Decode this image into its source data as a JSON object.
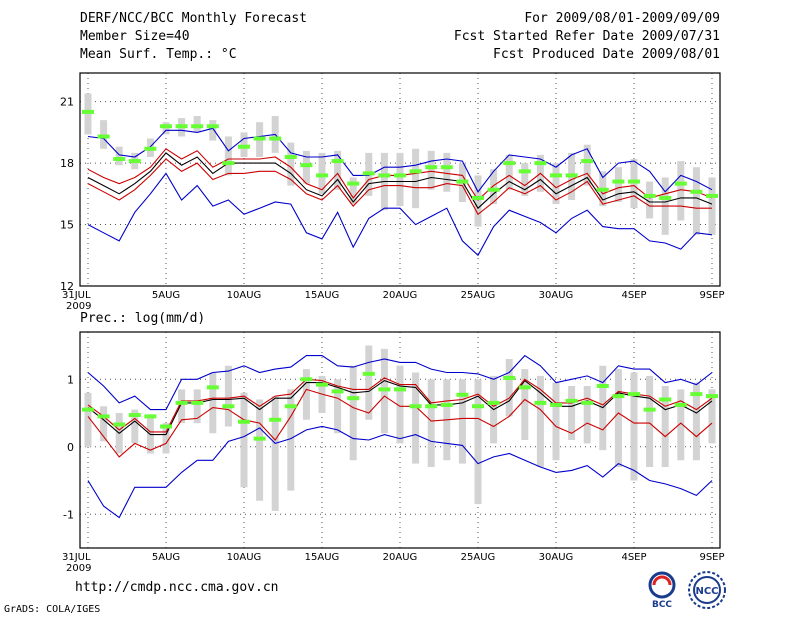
{
  "header": {
    "title": "DERF/NCC/BCC Monthly Forecast",
    "member_size": "Member Size=40",
    "variable": "Mean Surf. Temp.: °C",
    "period": "For 2009/08/01-2009/09/09",
    "started": "Fcst Started Refer Date 2009/07/31",
    "produced": "Fcst Produced Date 2009/08/01"
  },
  "footer": {
    "url": "http://cmdp.ncc.cma.gov.cn",
    "credit": "GrADS: COLA/IGES",
    "logo_bcc": "BCC",
    "logo_ncc": "NCC"
  },
  "colors": {
    "upper": "#0000cc",
    "lower": "#0000cc",
    "p75": "#cc0000",
    "p25": "#cc0000",
    "mean": "#000000",
    "box": "#d3d3d3",
    "obs": "#66ff33",
    "grid": "#555555"
  },
  "chart_data": [
    {
      "type": "line",
      "title": "Mean Surf. Temp.: °C",
      "x_count": 41,
      "xtick_labels": [
        "31JUL\n2009",
        "5AUG",
        "10AUG",
        "15AUG",
        "20AUG",
        "25AUG",
        "30AUG",
        "4SEP",
        "9SEP"
      ],
      "xtick_index": [
        0,
        5,
        10,
        15,
        20,
        25,
        30,
        35,
        40
      ],
      "ylim": [
        12,
        22.4
      ],
      "yticks": [
        12,
        15,
        18,
        21
      ],
      "series": [
        {
          "name": "max",
          "color_key": "upper",
          "values": [
            15,
            14.6,
            14.2,
            15.6,
            16.5,
            17.5,
            16.2,
            16.9,
            15.9,
            16.2,
            15.5,
            15.8,
            16.1,
            16,
            14.6,
            14.3,
            15.6,
            13.9,
            15.3,
            15.8,
            15.8,
            15,
            15.4,
            15.8,
            14.2,
            13.5,
            14.9,
            15.7,
            15.4,
            15.1,
            14.6,
            15.3,
            15.7,
            14.9,
            14.8,
            14.8,
            14.2,
            14.1,
            13.8,
            14.6,
            14.5
          ]
        },
        {
          "name": "p25",
          "color_key": "p25",
          "values": [
            17,
            16.6,
            16.2,
            16.7,
            17.4,
            18.2,
            17.6,
            18,
            17.2,
            17.5,
            17.5,
            17.6,
            17.6,
            17.2,
            16.5,
            16.2,
            16.9,
            15.9,
            16.7,
            16.9,
            16.9,
            16.8,
            16.8,
            17,
            16.9,
            15.5,
            16.1,
            16.8,
            16.5,
            16.9,
            16.2,
            16.6,
            17.1,
            16,
            16.2,
            16.4,
            15.9,
            15.9,
            15.9,
            15.8,
            15.8
          ]
        },
        {
          "name": "mean",
          "color_key": "mean",
          "values": [
            17.3,
            16.9,
            16.5,
            17,
            17.6,
            18.5,
            17.9,
            18.3,
            17.5,
            18,
            18,
            18,
            18,
            17.5,
            16.7,
            16.4,
            17.2,
            16.1,
            17,
            17.1,
            17.1,
            17.1,
            17.3,
            17.2,
            17.1,
            15.8,
            16.5,
            17.1,
            16.7,
            17.2,
            16.5,
            16.9,
            17.3,
            16.2,
            16.5,
            16.6,
            16.1,
            16.1,
            16.3,
            16.3,
            16
          ]
        },
        {
          "name": "p75",
          "color_key": "p75",
          "values": [
            17.7,
            17.3,
            17,
            17.3,
            17.8,
            18.7,
            18.2,
            18.6,
            17.8,
            18.2,
            18.2,
            18.2,
            18.3,
            17.8,
            17,
            16.7,
            17.5,
            16.3,
            17.2,
            17.4,
            17.4,
            17.5,
            17.6,
            17.5,
            17.4,
            16.2,
            16.9,
            17.4,
            16.9,
            17.5,
            16.8,
            17.2,
            17.5,
            16.5,
            16.8,
            16.9,
            16.3,
            16.5,
            16.7,
            16.6,
            16.3
          ]
        },
        {
          "name": "min",
          "color_key": "lower",
          "values": [
            19.3,
            19.2,
            18.4,
            18.3,
            18.8,
            19.6,
            19.6,
            19.5,
            19.7,
            18.6,
            19.2,
            19.3,
            19.4,
            18.5,
            18.3,
            18.3,
            18.4,
            17.4,
            17.4,
            17.8,
            17.8,
            17.9,
            18.1,
            18.2,
            18.1,
            16.6,
            17.6,
            18.4,
            18.3,
            18.2,
            17.8,
            18.4,
            18.7,
            17.3,
            18,
            18.1,
            17.6,
            16.6,
            17.4,
            17.1,
            16.7
          ]
        }
      ],
      "boxes": [
        [
          19.4,
          21.4
        ],
        [
          18.7,
          20.1
        ],
        [
          17.9,
          18.8
        ],
        [
          17.7,
          18.5
        ],
        [
          18.3,
          19.2
        ],
        [
          19.4,
          20
        ],
        [
          19.3,
          20.2
        ],
        [
          19.5,
          20.3
        ],
        [
          19.1,
          20.1
        ],
        [
          17.4,
          19.3
        ],
        [
          18.3,
          19.5
        ],
        [
          18.3,
          20
        ],
        [
          18.5,
          20.3
        ],
        [
          16.9,
          19
        ],
        [
          17,
          18.6
        ],
        [
          16.5,
          18.5
        ],
        [
          16.7,
          18.6
        ],
        [
          16,
          17.3
        ],
        [
          16.4,
          18.5
        ],
        [
          15.7,
          18.5
        ],
        [
          15.9,
          18.5
        ],
        [
          15.8,
          18.7
        ],
        [
          16.7,
          18.6
        ],
        [
          16.6,
          18.5
        ],
        [
          16.1,
          18
        ],
        [
          14.9,
          17.4
        ],
        [
          16,
          17.7
        ],
        [
          16.7,
          18.4
        ],
        [
          16.4,
          18
        ],
        [
          16.6,
          18.4
        ],
        [
          16,
          18
        ],
        [
          16.2,
          18.5
        ],
        [
          16.9,
          18.9
        ],
        [
          15.9,
          17.6
        ],
        [
          16.1,
          17.8
        ],
        [
          15.8,
          18.2
        ],
        [
          15.3,
          17.1
        ],
        [
          14.5,
          17.3
        ],
        [
          15.2,
          18.1
        ],
        [
          14.5,
          17.8
        ],
        [
          14.5,
          17.3
        ]
      ],
      "obs": [
        20.5,
        19.3,
        18.2,
        18.1,
        18.7,
        19.8,
        19.8,
        19.8,
        19.8,
        18,
        18.8,
        19.2,
        19.2,
        18.3,
        17.9,
        17.4,
        18.1,
        17,
        17.5,
        17.4,
        17.4,
        17.6,
        17.8,
        17.8,
        17.1,
        16.3,
        16.7,
        18,
        17.6,
        18,
        17.4,
        17.4,
        18.1,
        16.7,
        17.1,
        17.1,
        16.4,
        16.3,
        17,
        16.6,
        16.4
      ]
    },
    {
      "type": "line",
      "title": "Prec.: log(mm/d)",
      "x_count": 41,
      "xtick_labels": [
        "31JUL\n2009",
        "5AUG",
        "10AUG",
        "15AUG",
        "20AUG",
        "25AUG",
        "30AUG",
        "4SEP",
        "9SEP"
      ],
      "xtick_index": [
        0,
        5,
        10,
        15,
        20,
        25,
        30,
        35,
        40
      ],
      "ylim": [
        -1.5,
        1.7
      ],
      "yticks": [
        -1,
        0,
        1
      ],
      "series": [
        {
          "name": "min",
          "color_key": "lower",
          "values": [
            -0.5,
            -0.88,
            -1.05,
            -0.6,
            -0.6,
            -0.6,
            -0.38,
            -0.2,
            -0.2,
            0.08,
            0.15,
            0.28,
            0.05,
            0.12,
            0.25,
            0.3,
            0.25,
            0.12,
            0.1,
            0.18,
            0.12,
            0.18,
            0.08,
            0.05,
            0.02,
            -0.25,
            -0.15,
            -0.1,
            -0.2,
            -0.3,
            -0.38,
            -0.35,
            -0.28,
            -0.45,
            -0.25,
            -0.35,
            -0.5,
            -0.55,
            -0.62,
            -0.72,
            -0.5
          ]
        },
        {
          "name": "p25",
          "color_key": "p25",
          "values": [
            0.45,
            0.15,
            -0.15,
            0.05,
            -0.05,
            0.05,
            0.4,
            0.42,
            0.58,
            0.55,
            0.4,
            0.35,
            0.1,
            0.45,
            0.85,
            0.78,
            0.72,
            0.58,
            0.5,
            0.75,
            0.6,
            0.6,
            0.38,
            0.4,
            0.42,
            0.42,
            0.3,
            0.45,
            0.7,
            0.55,
            0.3,
            0.2,
            0.35,
            0.25,
            0.5,
            0.35,
            0.35,
            0.15,
            0.35,
            0.15,
            0.35
          ]
        },
        {
          "name": "mean",
          "color_key": "mean",
          "values": [
            0.58,
            0.4,
            0.2,
            0.38,
            0.18,
            0.18,
            0.65,
            0.65,
            0.7,
            0.7,
            0.72,
            0.55,
            0.72,
            0.72,
            0.95,
            0.95,
            0.88,
            0.8,
            0.82,
            0.98,
            0.9,
            0.88,
            0.62,
            0.62,
            0.65,
            0.75,
            0.55,
            0.68,
            0.98,
            0.8,
            0.6,
            0.6,
            0.68,
            0.58,
            0.8,
            0.75,
            0.72,
            0.55,
            0.62,
            0.5,
            0.68
          ]
        },
        {
          "name": "p75",
          "color_key": "p75",
          "values": [
            0.62,
            0.45,
            0.25,
            0.42,
            0.22,
            0.22,
            0.68,
            0.68,
            0.72,
            0.72,
            0.75,
            0.6,
            0.75,
            0.78,
            1,
            0.98,
            0.9,
            0.85,
            0.85,
            1.02,
            0.92,
            0.92,
            0.65,
            0.68,
            0.7,
            0.78,
            0.6,
            0.72,
            1,
            0.85,
            0.65,
            0.65,
            0.72,
            0.62,
            0.82,
            0.78,
            0.75,
            0.6,
            0.68,
            0.55,
            0.72
          ]
        },
        {
          "name": "max",
          "color_key": "upper",
          "values": [
            1.1,
            0.9,
            0.65,
            0.75,
            0.55,
            0.55,
            1,
            1,
            1.1,
            1.12,
            1.2,
            1.1,
            1.15,
            1.18,
            1.35,
            1.35,
            1.2,
            1.18,
            1.25,
            1.3,
            1.25,
            1.25,
            1.15,
            1.1,
            1.1,
            1.08,
            1,
            1.1,
            1.35,
            1.2,
            0.95,
            1,
            1.05,
            0.95,
            1.2,
            1.15,
            1.15,
            0.95,
            1,
            0.92,
            1.1
          ]
        }
      ],
      "boxes": [
        [
          0,
          0.8
        ],
        [
          0.08,
          0.6
        ],
        [
          -0.1,
          0.5
        ],
        [
          0.05,
          0.55
        ],
        [
          -0.1,
          0.45
        ],
        [
          -0.1,
          0.35
        ],
        [
          0.35,
          0.85
        ],
        [
          0.35,
          0.85
        ],
        [
          0.2,
          1.1
        ],
        [
          0.3,
          1.2
        ],
        [
          -0.6,
          0.8
        ],
        [
          -0.8,
          0.7
        ],
        [
          -0.95,
          0.75
        ],
        [
          -0.65,
          0.85
        ],
        [
          0.4,
          1.15
        ],
        [
          0.5,
          1.05
        ],
        [
          0.2,
          1
        ],
        [
          -0.2,
          1.2
        ],
        [
          0.4,
          1.5
        ],
        [
          0.2,
          1.45
        ],
        [
          0.05,
          1.2
        ],
        [
          -0.25,
          1.1
        ],
        [
          -0.3,
          1
        ],
        [
          -0.2,
          1
        ],
        [
          -0.25,
          1
        ],
        [
          -0.85,
          1
        ],
        [
          0.05,
          1.05
        ],
        [
          0.45,
          1.3
        ],
        [
          0.1,
          1.15
        ],
        [
          -0.3,
          1.05
        ],
        [
          -0.2,
          0.95
        ],
        [
          0.1,
          0.9
        ],
        [
          0.05,
          0.9
        ],
        [
          -0.05,
          1.2
        ],
        [
          -0.3,
          1.15
        ],
        [
          -0.5,
          1.1
        ],
        [
          -0.3,
          1.05
        ],
        [
          -0.3,
          0.9
        ],
        [
          -0.2,
          0.85
        ],
        [
          -0.2,
          0.95
        ],
        [
          0.05,
          0.85
        ]
      ],
      "obs": [
        0.55,
        0.45,
        0.33,
        0.47,
        0.45,
        0.3,
        0.65,
        0.65,
        0.88,
        0.6,
        0.37,
        0.12,
        0.4,
        0.6,
        1,
        0.92,
        0.82,
        0.72,
        1.08,
        0.85,
        0.85,
        0.6,
        0.6,
        0.62,
        0.77,
        0.6,
        0.65,
        1.02,
        0.88,
        0.65,
        0.62,
        0.68,
        0.65,
        0.9,
        0.75,
        0.78,
        0.55,
        0.7,
        0.62,
        0.78,
        0.75
      ]
    }
  ]
}
